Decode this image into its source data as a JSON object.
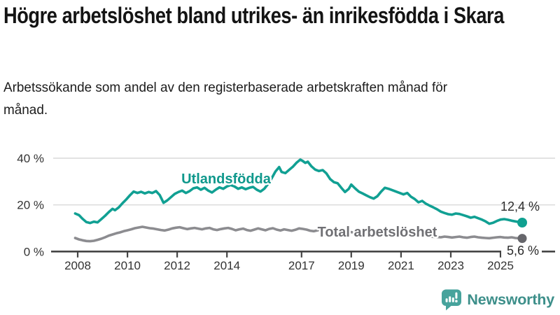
{
  "header": {
    "title": "Högre arbetslöshet bland utrikes- än inrikesfödda i Skara",
    "subtitle": "Arbetssökande som andel av den registerbaserade arbetskraften månad för månad."
  },
  "theme": {
    "grid_color": "#d9d9d9",
    "axis_color": "#454545",
    "axis_text_color": "#333333",
    "value_text_color": "#2b2b2b",
    "teal": "#11a093",
    "gray": "#8c8c90",
    "brand_color": "#3d8f8a",
    "brand_icon_color": "#47a39c"
  },
  "footer": {
    "brand": "Newsworthy",
    "logo_icon": "bar-chart-speech-bubble-icon"
  },
  "chart_data": {
    "type": "line",
    "title": "Högre arbetslöshet bland utrikes- än inrikesfödda i Skara",
    "subtitle": "Arbetssökande som andel av den registerbaserade arbetskraften månad för månad.",
    "unit": "%",
    "grid": true,
    "x_axis": {
      "ticks": [
        2008,
        2010,
        2012,
        2014,
        2017,
        2019,
        2021,
        2023,
        2025
      ],
      "range": [
        2007.85,
        2026.2
      ]
    },
    "y_axis": {
      "ticks": [
        0,
        20,
        40
      ],
      "tick_labels": [
        "0 %",
        "20 %",
        "40 %"
      ],
      "range": [
        0,
        42
      ]
    },
    "series": [
      {
        "name": "Utlandsfödda",
        "slug": "utlandsfodda",
        "color": "#11a093",
        "label_color": "#0f988c",
        "dot_color": "#0fa090",
        "end_label": "12,4 %",
        "end_value": 12.4,
        "points": [
          [
            2007.9,
            16.3
          ],
          [
            2008.05,
            15.6
          ],
          [
            2008.2,
            14.0
          ],
          [
            2008.35,
            12.6
          ],
          [
            2008.5,
            12.2
          ],
          [
            2008.65,
            12.8
          ],
          [
            2008.8,
            12.5
          ],
          [
            2008.95,
            13.9
          ],
          [
            2009.1,
            15.3
          ],
          [
            2009.25,
            16.9
          ],
          [
            2009.4,
            18.3
          ],
          [
            2009.5,
            17.7
          ],
          [
            2009.65,
            18.9
          ],
          [
            2009.8,
            20.7
          ],
          [
            2009.95,
            22.3
          ],
          [
            2010.1,
            24.1
          ],
          [
            2010.25,
            25.7
          ],
          [
            2010.4,
            25.1
          ],
          [
            2010.55,
            25.6
          ],
          [
            2010.7,
            24.9
          ],
          [
            2010.85,
            25.5
          ],
          [
            2011.0,
            25.1
          ],
          [
            2011.15,
            25.9
          ],
          [
            2011.3,
            24.2
          ],
          [
            2011.45,
            20.9
          ],
          [
            2011.6,
            21.9
          ],
          [
            2011.75,
            23.3
          ],
          [
            2011.9,
            24.7
          ],
          [
            2012.05,
            25.5
          ],
          [
            2012.2,
            26.1
          ],
          [
            2012.35,
            25.1
          ],
          [
            2012.5,
            25.9
          ],
          [
            2012.65,
            27.1
          ],
          [
            2012.8,
            27.5
          ],
          [
            2012.95,
            26.5
          ],
          [
            2013.1,
            27.3
          ],
          [
            2013.25,
            26.1
          ],
          [
            2013.4,
            25.3
          ],
          [
            2013.55,
            26.5
          ],
          [
            2013.7,
            27.5
          ],
          [
            2013.85,
            26.9
          ],
          [
            2014.0,
            27.9
          ],
          [
            2014.15,
            28.5
          ],
          [
            2014.3,
            27.9
          ],
          [
            2014.45,
            26.9
          ],
          [
            2014.6,
            27.5
          ],
          [
            2014.75,
            26.7
          ],
          [
            2014.9,
            27.3
          ],
          [
            2015.05,
            27.7
          ],
          [
            2015.2,
            26.5
          ],
          [
            2015.35,
            25.7
          ],
          [
            2015.5,
            26.9
          ],
          [
            2015.65,
            28.9
          ],
          [
            2015.8,
            31.4
          ],
          [
            2015.95,
            34.3
          ],
          [
            2016.1,
            36.2
          ],
          [
            2016.2,
            34.1
          ],
          [
            2016.35,
            33.6
          ],
          [
            2016.5,
            35.0
          ],
          [
            2016.65,
            36.3
          ],
          [
            2016.8,
            38.1
          ],
          [
            2016.95,
            39.4
          ],
          [
            2017.05,
            38.8
          ],
          [
            2017.15,
            38.0
          ],
          [
            2017.25,
            38.5
          ],
          [
            2017.4,
            36.5
          ],
          [
            2017.55,
            35.1
          ],
          [
            2017.7,
            34.5
          ],
          [
            2017.85,
            34.9
          ],
          [
            2018.0,
            33.5
          ],
          [
            2018.15,
            31.1
          ],
          [
            2018.3,
            29.7
          ],
          [
            2018.45,
            29.3
          ],
          [
            2018.6,
            27.3
          ],
          [
            2018.75,
            25.5
          ],
          [
            2018.9,
            26.9
          ],
          [
            2019.0,
            28.7
          ],
          [
            2019.15,
            27.1
          ],
          [
            2019.3,
            25.7
          ],
          [
            2019.45,
            24.9
          ],
          [
            2019.6,
            24.1
          ],
          [
            2019.75,
            23.3
          ],
          [
            2019.9,
            22.7
          ],
          [
            2020.05,
            23.7
          ],
          [
            2020.2,
            25.7
          ],
          [
            2020.35,
            27.3
          ],
          [
            2020.5,
            26.9
          ],
          [
            2020.65,
            26.3
          ],
          [
            2020.8,
            25.7
          ],
          [
            2020.95,
            25.1
          ],
          [
            2021.1,
            24.5
          ],
          [
            2021.25,
            25.1
          ],
          [
            2021.4,
            23.5
          ],
          [
            2021.55,
            22.5
          ],
          [
            2021.7,
            21.1
          ],
          [
            2021.85,
            21.7
          ],
          [
            2022.0,
            20.5
          ],
          [
            2022.15,
            19.7
          ],
          [
            2022.3,
            18.9
          ],
          [
            2022.45,
            18.1
          ],
          [
            2022.6,
            17.1
          ],
          [
            2022.75,
            16.5
          ],
          [
            2022.9,
            16.0
          ],
          [
            2023.05,
            15.8
          ],
          [
            2023.2,
            16.3
          ],
          [
            2023.35,
            16.1
          ],
          [
            2023.5,
            15.6
          ],
          [
            2023.65,
            15.1
          ],
          [
            2023.8,
            14.5
          ],
          [
            2023.95,
            14.9
          ],
          [
            2024.1,
            14.3
          ],
          [
            2024.25,
            13.7
          ],
          [
            2024.4,
            12.9
          ],
          [
            2024.55,
            11.9
          ],
          [
            2024.7,
            12.3
          ],
          [
            2024.85,
            13.1
          ],
          [
            2025.0,
            13.7
          ],
          [
            2025.15,
            13.9
          ],
          [
            2025.3,
            13.6
          ],
          [
            2025.45,
            13.2
          ],
          [
            2025.6,
            12.9
          ],
          [
            2025.75,
            12.6
          ],
          [
            2025.85,
            12.4
          ]
        ]
      },
      {
        "name": "Total arbetslöshet",
        "slug": "total-arbetsloshet",
        "color": "#8c8c90",
        "label_color": "#707074",
        "dot_color": "#66666b",
        "end_label": "5,6 %",
        "end_value": 5.6,
        "points": [
          [
            2007.9,
            5.8
          ],
          [
            2008.05,
            5.2
          ],
          [
            2008.2,
            4.8
          ],
          [
            2008.35,
            4.5
          ],
          [
            2008.5,
            4.4
          ],
          [
            2008.65,
            4.6
          ],
          [
            2008.8,
            5.0
          ],
          [
            2008.95,
            5.5
          ],
          [
            2009.1,
            6.1
          ],
          [
            2009.25,
            6.8
          ],
          [
            2009.4,
            7.3
          ],
          [
            2009.55,
            7.8
          ],
          [
            2009.7,
            8.2
          ],
          [
            2009.85,
            8.7
          ],
          [
            2010.0,
            9.1
          ],
          [
            2010.15,
            9.5
          ],
          [
            2010.3,
            10.0
          ],
          [
            2010.45,
            10.3
          ],
          [
            2010.6,
            10.6
          ],
          [
            2010.75,
            10.3
          ],
          [
            2010.9,
            10.0
          ],
          [
            2011.05,
            9.8
          ],
          [
            2011.2,
            9.5
          ],
          [
            2011.35,
            9.2
          ],
          [
            2011.5,
            9.0
          ],
          [
            2011.65,
            9.4
          ],
          [
            2011.8,
            9.9
          ],
          [
            2011.95,
            10.2
          ],
          [
            2012.1,
            10.4
          ],
          [
            2012.25,
            10.0
          ],
          [
            2012.4,
            9.6
          ],
          [
            2012.55,
            9.9
          ],
          [
            2012.7,
            10.1
          ],
          [
            2012.85,
            9.8
          ],
          [
            2013.0,
            9.5
          ],
          [
            2013.15,
            9.9
          ],
          [
            2013.3,
            10.1
          ],
          [
            2013.45,
            9.5
          ],
          [
            2013.6,
            9.2
          ],
          [
            2013.75,
            9.6
          ],
          [
            2013.9,
            9.9
          ],
          [
            2014.05,
            10.1
          ],
          [
            2014.2,
            9.7
          ],
          [
            2014.35,
            9.1
          ],
          [
            2014.5,
            9.5
          ],
          [
            2014.65,
            9.8
          ],
          [
            2014.8,
            9.2
          ],
          [
            2014.95,
            8.9
          ],
          [
            2015.1,
            9.4
          ],
          [
            2015.25,
            9.9
          ],
          [
            2015.4,
            9.5
          ],
          [
            2015.55,
            9.1
          ],
          [
            2015.7,
            9.7
          ],
          [
            2015.85,
            10.0
          ],
          [
            2016.0,
            9.4
          ],
          [
            2016.15,
            9.0
          ],
          [
            2016.3,
            9.5
          ],
          [
            2016.45,
            9.2
          ],
          [
            2016.6,
            8.9
          ],
          [
            2016.75,
            9.3
          ],
          [
            2016.9,
            9.9
          ],
          [
            2017.05,
            9.7
          ],
          [
            2017.2,
            9.4
          ],
          [
            2017.35,
            8.9
          ],
          [
            2017.5,
            8.7
          ],
          [
            2017.65,
            9.1
          ],
          [
            2017.8,
            9.5
          ],
          [
            2017.95,
            9.0
          ],
          [
            2018.1,
            8.7
          ],
          [
            2018.25,
            8.4
          ],
          [
            2018.4,
            8.2
          ],
          [
            2018.55,
            8.0
          ],
          [
            2018.7,
            8.3
          ],
          [
            2018.85,
            8.6
          ],
          [
            2019.0,
            8.3
          ],
          [
            2019.15,
            8.0
          ],
          [
            2019.3,
            7.8
          ],
          [
            2019.45,
            7.6
          ],
          [
            2019.6,
            7.8
          ],
          [
            2019.75,
            8.0
          ],
          [
            2019.9,
            8.2
          ],
          [
            2020.05,
            8.5
          ],
          [
            2020.2,
            8.9
          ],
          [
            2020.35,
            9.3
          ],
          [
            2020.5,
            9.1
          ],
          [
            2020.65,
            8.8
          ],
          [
            2020.8,
            8.5
          ],
          [
            2020.95,
            8.2
          ],
          [
            2021.1,
            8.0
          ],
          [
            2021.25,
            7.8
          ],
          [
            2021.4,
            7.5
          ],
          [
            2021.55,
            7.2
          ],
          [
            2021.7,
            7.0
          ],
          [
            2021.85,
            6.8
          ],
          [
            2022.0,
            6.6
          ],
          [
            2022.15,
            6.4
          ],
          [
            2022.3,
            6.3
          ],
          [
            2022.45,
            6.2
          ],
          [
            2022.6,
            6.1
          ],
          [
            2022.75,
            6.4
          ],
          [
            2022.9,
            6.2
          ],
          [
            2023.05,
            6.0
          ],
          [
            2023.2,
            6.2
          ],
          [
            2023.35,
            6.4
          ],
          [
            2023.5,
            6.1
          ],
          [
            2023.65,
            5.9
          ],
          [
            2023.8,
            6.2
          ],
          [
            2023.95,
            6.4
          ],
          [
            2024.1,
            6.1
          ],
          [
            2024.25,
            5.9
          ],
          [
            2024.4,
            5.8
          ],
          [
            2024.55,
            5.7
          ],
          [
            2024.7,
            5.9
          ],
          [
            2024.85,
            6.1
          ],
          [
            2025.0,
            6.2
          ],
          [
            2025.15,
            6.0
          ],
          [
            2025.3,
            5.9
          ],
          [
            2025.45,
            6.1
          ],
          [
            2025.6,
            5.8
          ],
          [
            2025.75,
            5.7
          ],
          [
            2025.85,
            5.6
          ]
        ]
      }
    ],
    "legend_position": "inline-labels"
  }
}
